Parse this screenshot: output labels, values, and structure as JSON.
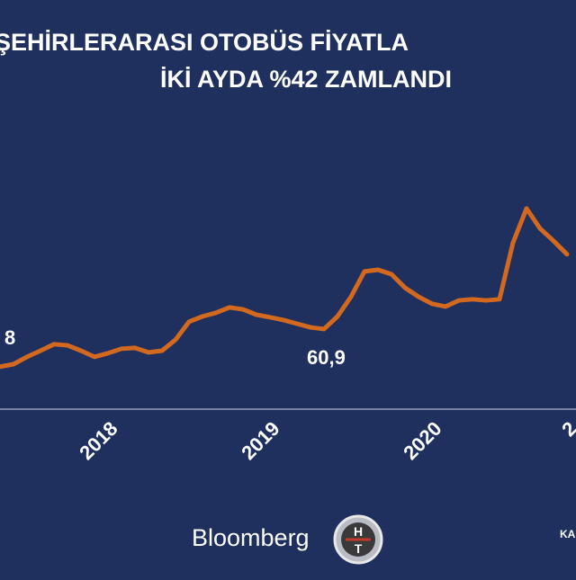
{
  "chart_data": {
    "type": "line",
    "title": [
      "ŞEHİRLERARASI OTOBÜS FİYATLA",
      "İKİ AYDA %42 ZAMLANDI"
    ],
    "categories": [
      null,
      null,
      null,
      null,
      null,
      null,
      null,
      null,
      "2018",
      null,
      null,
      null,
      null,
      null,
      null,
      null,
      null,
      null,
      null,
      null,
      "2019",
      null,
      null,
      null,
      null,
      null,
      null,
      null,
      null,
      null,
      null,
      null,
      "2020",
      null,
      null,
      null,
      null,
      null,
      null,
      null,
      null,
      null,
      "2"
    ],
    "series": [
      {
        "color": "#d2691e",
        "values": [
          47.5,
          48.4,
          51.0,
          53.2,
          55.5,
          55.1,
          53.2,
          51.0,
          52.3,
          53.9,
          54.2,
          52.6,
          53.2,
          57.1,
          63.5,
          65.4,
          66.7,
          68.6,
          67.9,
          66.0,
          65.1,
          64.1,
          62.8,
          61.5,
          60.9,
          65.4,
          72.4,
          81.4,
          82.0,
          80.4,
          75.6,
          72.4,
          69.9,
          68.9,
          71.1,
          71.5,
          71.1,
          71.5,
          91.6,
          103.8,
          96.7,
          92.3,
          87.5
        ]
      }
    ],
    "ylim": [
      32.4,
      130.0
    ],
    "annotations": [
      "8",
      "60,9"
    ],
    "logos": [
      "Bloomberg"
    ],
    "ht_logo": [
      "H",
      "T"
    ],
    "source": "KA"
  }
}
